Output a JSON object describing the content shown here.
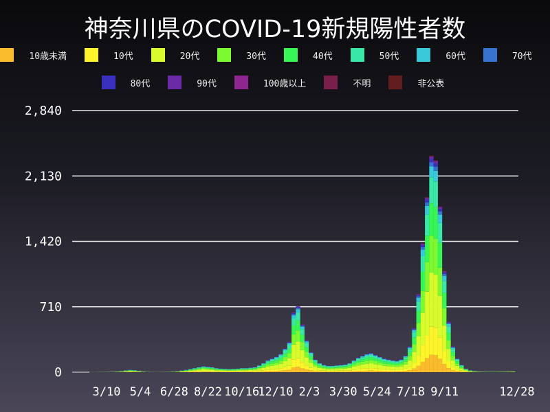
{
  "chart_data": {
    "type": "bar",
    "stacked": true,
    "title": "神奈川県のCOVID-19新規陽性者数",
    "xlabel": "",
    "ylabel": "",
    "ylim": [
      0,
      2840
    ],
    "yticks": [
      0,
      710,
      1420,
      2130,
      2840
    ],
    "ytick_labels": [
      "0",
      "710",
      "1,420",
      "2,130",
      "2,840"
    ],
    "xtick_labels": [
      "3/10",
      "5/4",
      "6/28",
      "8/22",
      "10/16",
      "12/10",
      "2/3",
      "3/30",
      "5/24",
      "7/18",
      "9/11",
      "12/28"
    ],
    "xtick_dates": [
      "2020-03-10",
      "2020-05-04",
      "2020-06-28",
      "2020-08-22",
      "2020-10-16",
      "2020-12-10",
      "2021-02-03",
      "2021-03-30",
      "2021-05-24",
      "2021-07-18",
      "2021-09-11",
      "2021-12-28"
    ],
    "grid": "horizontal",
    "legend_position": "top",
    "categories": [
      "2020-01-14",
      "2020-01-21",
      "2020-01-28",
      "2020-02-04",
      "2020-02-11",
      "2020-02-18",
      "2020-02-25",
      "2020-03-03",
      "2020-03-10",
      "2020-03-17",
      "2020-03-24",
      "2020-03-31",
      "2020-04-07",
      "2020-04-14",
      "2020-04-21",
      "2020-04-28",
      "2020-05-05",
      "2020-05-12",
      "2020-05-19",
      "2020-05-26",
      "2020-06-02",
      "2020-06-09",
      "2020-06-16",
      "2020-06-23",
      "2020-06-30",
      "2020-07-07",
      "2020-07-14",
      "2020-07-21",
      "2020-07-28",
      "2020-08-04",
      "2020-08-11",
      "2020-08-18",
      "2020-08-25",
      "2020-09-01",
      "2020-09-08",
      "2020-09-15",
      "2020-09-22",
      "2020-09-29",
      "2020-10-06",
      "2020-10-13",
      "2020-10-20",
      "2020-10-27",
      "2020-11-03",
      "2020-11-10",
      "2020-11-17",
      "2020-11-24",
      "2020-12-01",
      "2020-12-08",
      "2020-12-15",
      "2020-12-22",
      "2020-12-29",
      "2021-01-05",
      "2021-01-12",
      "2021-01-19",
      "2021-01-26",
      "2021-02-02",
      "2021-02-09",
      "2021-02-16",
      "2021-02-23",
      "2021-03-02",
      "2021-03-09",
      "2021-03-16",
      "2021-03-23",
      "2021-03-30",
      "2021-04-06",
      "2021-04-13",
      "2021-04-20",
      "2021-04-27",
      "2021-05-04",
      "2021-05-11",
      "2021-05-18",
      "2021-05-25",
      "2021-06-01",
      "2021-06-08",
      "2021-06-15",
      "2021-06-22",
      "2021-06-29",
      "2021-07-06",
      "2021-07-13",
      "2021-07-20",
      "2021-07-27",
      "2021-08-03",
      "2021-08-10",
      "2021-08-17",
      "2021-08-24",
      "2021-08-31",
      "2021-09-07",
      "2021-09-14",
      "2021-09-21",
      "2021-09-28",
      "2021-10-05",
      "2021-10-12",
      "2021-10-19",
      "2021-10-26",
      "2021-11-02",
      "2021-11-09",
      "2021-11-16",
      "2021-11-23",
      "2021-11-30",
      "2021-12-07",
      "2021-12-14",
      "2021-12-21",
      "2021-12-28"
    ],
    "totals": [
      0,
      0,
      0,
      0,
      1,
      1,
      2,
      3,
      4,
      5,
      8,
      12,
      20,
      25,
      22,
      15,
      8,
      4,
      2,
      2,
      2,
      3,
      4,
      6,
      10,
      18,
      25,
      35,
      45,
      55,
      65,
      60,
      55,
      45,
      40,
      38,
      35,
      38,
      40,
      45,
      45,
      50,
      55,
      75,
      100,
      130,
      150,
      170,
      200,
      260,
      330,
      650,
      720,
      520,
      350,
      220,
      140,
      100,
      80,
      70,
      70,
      75,
      80,
      85,
      100,
      130,
      160,
      180,
      200,
      210,
      190,
      170,
      150,
      140,
      130,
      125,
      140,
      180,
      280,
      480,
      850,
      1400,
      1900,
      2350,
      2300,
      1800,
      1100,
      550,
      280,
      150,
      80,
      40,
      20,
      12,
      8,
      6,
      5,
      5,
      5,
      6,
      7,
      8,
      10
    ],
    "series": [
      {
        "name": "10歳未満",
        "color": "#fbbc2b",
        "share": 0.08
      },
      {
        "name": "10代",
        "color": "#fdf42a",
        "share": 0.13
      },
      {
        "name": "20代",
        "color": "#d9fb2b",
        "share": 0.25
      },
      {
        "name": "30代",
        "color": "#7cf931",
        "share": 0.17
      },
      {
        "name": "40代",
        "color": "#36f554",
        "share": 0.15
      },
      {
        "name": "50代",
        "color": "#39e8a6",
        "share": 0.12
      },
      {
        "name": "60代",
        "color": "#37c8d9",
        "share": 0.05
      },
      {
        "name": "70代",
        "color": "#3774d0",
        "share": 0.02
      },
      {
        "name": "80代",
        "color": "#3a30bd",
        "share": 0.015
      },
      {
        "name": "90代",
        "color": "#6c2ba6",
        "share": 0.01
      },
      {
        "name": "100歳以上",
        "color": "#8f268f",
        "share": 0.001
      },
      {
        "name": "不明",
        "color": "#7a1f4c",
        "share": 0.003
      },
      {
        "name": "非公表",
        "color": "#621d1f",
        "share": 0.001
      }
    ]
  }
}
